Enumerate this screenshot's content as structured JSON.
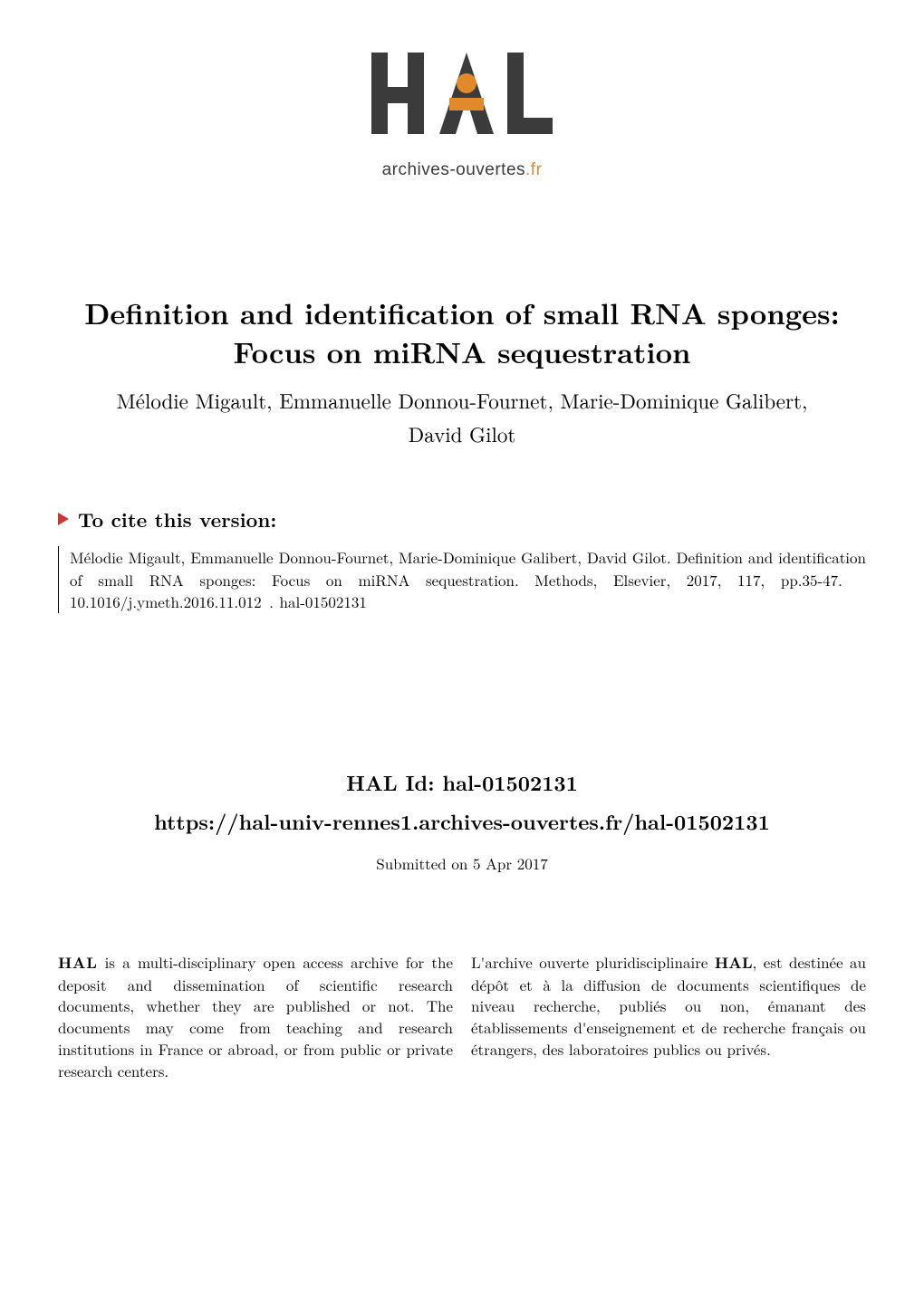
{
  "logo": {
    "text_top": "HAL",
    "subtext_prefix": "archives-ouvertes",
    "subtext_suffix": ".fr",
    "orange": "#e08a2c",
    "gray_dark": "#3b3b3b",
    "gray_mid": "#6b6b6b"
  },
  "title": {
    "line1": "Definition and identification of small RNA sponges:",
    "line2": "Focus on miRNA sequestration",
    "fontsize": 32
  },
  "authors": {
    "line1": "Mélodie Migault, Emmanuelle Donnou-Fournet, Marie-Dominique Galibert,",
    "line2": "David Gilot",
    "fontsize": 23
  },
  "cite": {
    "header": "To cite this version:",
    "triangle_color": "#c83737",
    "body": "Mélodie Migault, Emmanuelle Donnou-Fournet, Marie-Dominique Galibert, David Gilot. Definition and identification of small RNA sponges: Focus on miRNA sequestration. Methods, Elsevier, 2017, 117, pp.35-47.  10.1016/j.ymeth.2016.11.012 .  hal-01502131",
    "fontsize": 17
  },
  "hal": {
    "id_label": "HAL Id: hal-01502131",
    "url": "https://hal-univ-rennes1.archives-ouvertes.fr/hal-01502131",
    "submitted": "Submitted on 5 Apr 2017",
    "fontsize": 23
  },
  "footer": {
    "left": "HAL is a multi-disciplinary open access archive for the deposit and dissemination of scientific research documents, whether they are published or not. The documents may come from teaching and research institutions in France or abroad, or from public or private research centers.",
    "left_bold_word": "HAL",
    "right": "L'archive ouverte pluridisciplinaire HAL, est destinée au dépôt et à la diffusion de documents scientifiques de niveau recherche, publiés ou non, émanant des établissements d'enseignement et de recherche français ou étrangers, des laboratoires publics ou privés.",
    "right_bold_word": "HAL",
    "fontsize": 17
  },
  "colors": {
    "background": "#ffffff",
    "text": "#000000"
  }
}
